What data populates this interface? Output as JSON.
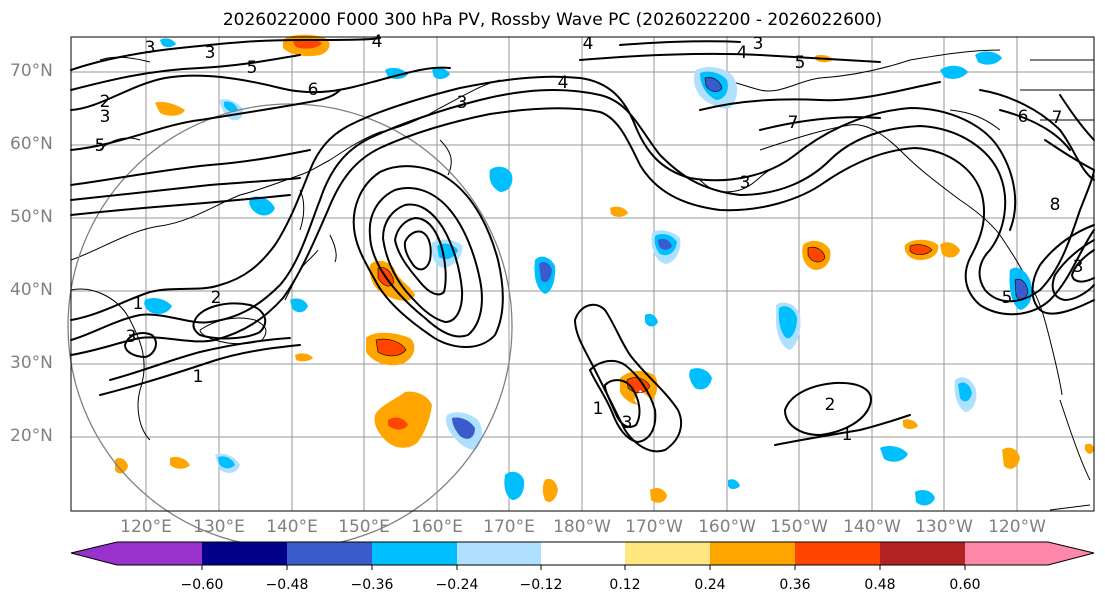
{
  "title": "2026022000 F000 300 hPa PV, Rossby Wave PC (2026022200 - 2026022600)",
  "lat_labels": [
    "70°N",
    "60°N",
    "50°N",
    "40°N",
    "30°N",
    "20°N"
  ],
  "lon_labels": [
    "120°E",
    "130°E",
    "140°E",
    "150°E",
    "160°E",
    "170°E",
    "180°W",
    "170°W",
    "160°W",
    "150°W",
    "140°W",
    "130°W",
    "120°W"
  ],
  "colorbar": {
    "ticks": [
      "−0.60",
      "−0.48",
      "−0.36",
      "−0.24",
      "−0.12",
      "0.12",
      "0.24",
      "0.36",
      "0.48",
      "0.60"
    ],
    "colors": [
      "#9932cc",
      "#00008b",
      "#3a5bcc",
      "#00bfff",
      "#b0e0ff",
      "#ffffff",
      "#ffe680",
      "#ffa500",
      "#ff4500",
      "#b22222",
      "#ff88aa"
    ]
  },
  "contour_labels": [
    "3",
    "3",
    "4",
    "3",
    "5",
    "6",
    "2",
    "3",
    "5",
    "3",
    "4",
    "7",
    "5",
    "6",
    "7",
    "4",
    "3",
    "4",
    "3",
    "2",
    "1",
    "1",
    "3",
    "1",
    "2",
    "1",
    "8",
    "3",
    "5"
  ],
  "line_color": "#000000",
  "circle_color": "#808080"
}
